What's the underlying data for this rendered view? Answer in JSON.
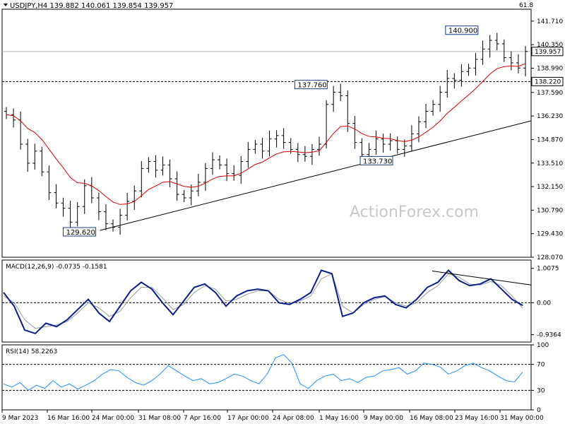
{
  "chart_data": [
    {
      "type": "candlestick",
      "title": "USDJPY,H4  139.882 140.061 139.854 139.957",
      "corner_value": "61.8",
      "ylim": [
        128.07,
        142.4
      ],
      "y_ticks": [
        "141.710",
        "140.350",
        "138.990",
        "137.590",
        "136.230",
        "134.870",
        "133.510",
        "132.150",
        "130.790",
        "129.430",
        "128.070"
      ],
      "last_price": "139.957",
      "support_level": "138.220",
      "moving_average": "red",
      "annotations": [
        {
          "label": "129.620",
          "x": 0.185,
          "y": 129.62
        },
        {
          "label": "137.760",
          "x": 0.62,
          "y": 137.76
        },
        {
          "label": "133.730",
          "x": 0.725,
          "y": 133.73
        },
        {
          "label": "140.900",
          "x": 0.905,
          "y": 140.9
        }
      ],
      "trendlines": [
        {
          "from": {
            "x": 0.185,
            "y": 129.62
          },
          "to": {
            "x": 1.0,
            "y": 135.95
          }
        }
      ],
      "series_close": [
        136.3,
        136.0,
        134.6,
        133.5,
        134.2,
        133.0,
        131.8,
        131.2,
        130.9,
        130.1,
        131.0,
        132.2,
        131.5,
        130.7,
        130.0,
        129.8,
        130.5,
        131.3,
        131.9,
        133.2,
        133.6,
        133.1,
        133.4,
        132.6,
        131.7,
        131.5,
        131.9,
        132.4,
        133.2,
        133.7,
        133.4,
        132.9,
        132.8,
        133.6,
        134.3,
        134.6,
        134.2,
        134.9,
        135.1,
        134.7,
        134.3,
        134.0,
        133.9,
        134.3,
        134.6,
        136.9,
        137.6,
        137.4,
        135.8,
        134.7,
        134.0,
        134.3,
        134.9,
        134.6,
        134.8,
        134.3,
        134.5,
        135.2,
        135.9,
        136.5,
        136.9,
        137.6,
        138.4,
        138.3,
        138.8,
        139.0,
        139.5,
        140.1,
        140.6,
        140.4,
        139.6,
        139.3,
        139.0,
        139.96
      ]
    },
    {
      "type": "line",
      "title": "MACD(12,26,9) -0.0735 -0.1581",
      "y_ticks": [
        "1.0075",
        "0.00",
        "-0.9364"
      ],
      "ylim": [
        -1.15,
        1.25
      ],
      "series": [
        {
          "name": "MACD",
          "values": [
            0.3,
            -0.1,
            -0.8,
            -0.9,
            -0.6,
            -0.7,
            -0.5,
            -0.2,
            0.1,
            -0.3,
            -0.55,
            -0.1,
            0.35,
            0.6,
            0.4,
            0.0,
            -0.35,
            0.05,
            0.45,
            0.55,
            0.3,
            -0.1,
            0.2,
            0.35,
            0.4,
            0.35,
            0.0,
            -0.05,
            0.1,
            0.3,
            0.95,
            0.85,
            -0.4,
            -0.3,
            0.0,
            0.15,
            0.2,
            -0.05,
            -0.15,
            0.1,
            0.45,
            0.6,
            0.95,
            0.65,
            0.5,
            0.55,
            0.7,
            0.4,
            0.1,
            -0.08
          ]
        },
        {
          "name": "Signal",
          "values": [
            0.2,
            0.0,
            -0.5,
            -0.75,
            -0.7,
            -0.65,
            -0.55,
            -0.3,
            0.0,
            -0.15,
            -0.4,
            -0.25,
            0.15,
            0.45,
            0.45,
            0.15,
            -0.2,
            -0.05,
            0.3,
            0.5,
            0.4,
            0.05,
            0.1,
            0.25,
            0.35,
            0.35,
            0.1,
            -0.02,
            0.05,
            0.2,
            0.7,
            0.85,
            -0.1,
            -0.3,
            -0.05,
            0.1,
            0.18,
            0.0,
            -0.1,
            0.0,
            0.3,
            0.5,
            0.85,
            0.75,
            0.55,
            0.52,
            0.62,
            0.5,
            0.2,
            -0.16
          ]
        }
      ]
    },
    {
      "type": "line",
      "title": "RSI(14) 58.2263",
      "y_ticks": [
        "100",
        "70",
        "30",
        "0"
      ],
      "ylim": [
        0,
        100
      ],
      "series": [
        {
          "name": "RSI",
          "values": [
            40,
            35,
            42,
            30,
            38,
            33,
            45,
            35,
            40,
            32,
            38,
            45,
            55,
            62,
            60,
            50,
            42,
            38,
            45,
            55,
            68,
            60,
            52,
            45,
            48,
            40,
            42,
            48,
            55,
            52,
            45,
            40,
            55,
            80,
            85,
            72,
            40,
            33,
            45,
            52,
            55,
            45,
            48,
            42,
            50,
            52,
            60,
            62,
            65,
            55,
            60,
            72,
            70,
            66,
            55,
            60,
            68,
            72,
            65,
            60,
            52,
            45,
            43,
            58
          ]
        }
      ]
    }
  ],
  "xaxis_labels": [
    "9 Mar 2023",
    "16 Mar 16:00",
    "24 Mar 00:00",
    "31 Mar 08:00",
    "7 Apr 16:00",
    "17 Apr 00:00",
    "24 Apr 08:00",
    "1 May 16:00",
    "9 May 00:00",
    "16 May 08:00",
    "23 May 16:00",
    "31 May 00:00"
  ],
  "watermark": "ActionForex.com"
}
